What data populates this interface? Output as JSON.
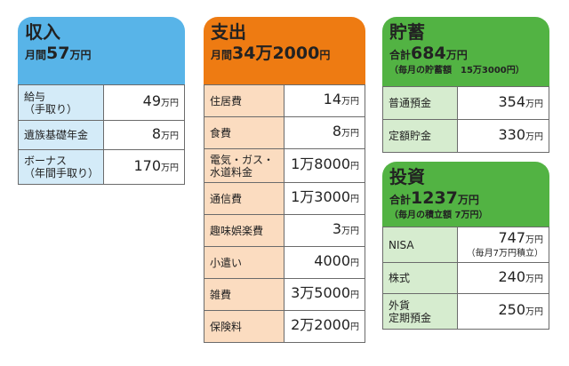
{
  "income": {
    "title": "収入",
    "total_prefix": "月間",
    "total_value": "57",
    "total_unit": "万円",
    "rows": [
      {
        "label": "給与\n（手取り）",
        "value": "49",
        "unit": "万円"
      },
      {
        "label": "遺族基礎年金",
        "value": "8",
        "unit": "万円"
      },
      {
        "label": "ボーナス\n（年間手取り）",
        "value": "170",
        "unit": "万円"
      }
    ]
  },
  "expense": {
    "title": "支出",
    "total_prefix": "月間",
    "total_value": "34万2000",
    "total_unit": "円",
    "rows": [
      {
        "label": "住居費",
        "value": "14",
        "unit": "万円"
      },
      {
        "label": "食費",
        "value": "8",
        "unit": "万円"
      },
      {
        "label": "電気・ガス・\n水道料金",
        "value": "1万8000",
        "unit": "円"
      },
      {
        "label": "通信費",
        "value": "1万3000",
        "unit": "円"
      },
      {
        "label": "趣味娯楽費",
        "value": "3",
        "unit": "万円"
      },
      {
        "label": "小遣い",
        "value": "4000",
        "unit": "円"
      },
      {
        "label": "雑費",
        "value": "3万5000",
        "unit": "円"
      },
      {
        "label": "保険料",
        "value": "2万2000",
        "unit": "円"
      }
    ]
  },
  "savings": {
    "title": "貯蓄",
    "total_prefix": "合計",
    "total_value": "684",
    "total_unit": "万円",
    "sub": "（毎月の貯蓄額　15万3000円）",
    "rows": [
      {
        "label": "普通預金",
        "value": "354",
        "unit": "万円"
      },
      {
        "label": "定額貯金",
        "value": "330",
        "unit": "万円"
      }
    ]
  },
  "invest": {
    "title": "投資",
    "total_prefix": "合計",
    "total_value": "1237",
    "total_unit": "万円",
    "sub": "（毎月の積立額 7万円）",
    "rows": [
      {
        "label": "NISA",
        "value": "747",
        "unit": "万円",
        "note": "（毎月7万円積立）"
      },
      {
        "label": "株式",
        "value": "240",
        "unit": "万円"
      },
      {
        "label": "外貨\n定期預金",
        "value": "250",
        "unit": "万円"
      }
    ]
  },
  "colors": {
    "income_accent": "#58b4e8",
    "expense_accent": "#ee7b12",
    "savings_accent": "#52b343"
  }
}
